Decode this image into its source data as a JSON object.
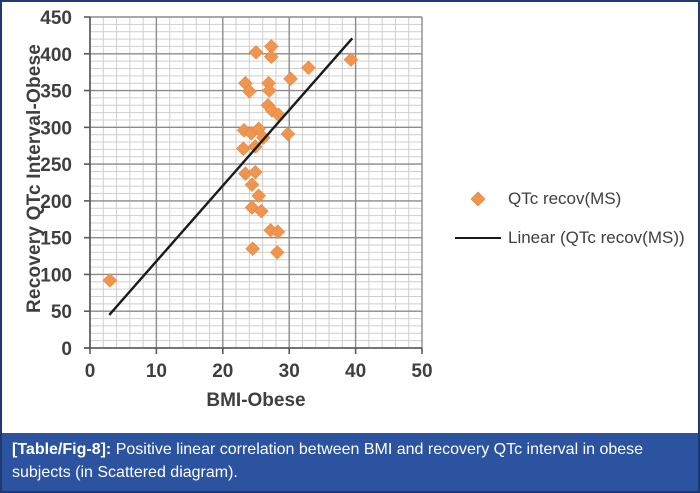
{
  "chart_data": {
    "type": "scatter",
    "xlabel": "BMI-Obese",
    "ylabel": "Recovery QTc Interval-Obese",
    "xlim": [
      0,
      50
    ],
    "ylim": [
      0,
      450
    ],
    "x_ticks": [
      0,
      10,
      20,
      30,
      40,
      50
    ],
    "y_ticks": [
      0,
      50,
      100,
      150,
      200,
      250,
      300,
      350,
      400,
      450
    ],
    "x_minor_step": 2,
    "y_minor_step": 10,
    "grid": true,
    "legend_position": "right-center",
    "series": [
      {
        "name": "QTc recov(MS)",
        "kind": "scatter",
        "marker": "diamond",
        "color": "#F0954E",
        "points": [
          [
            3,
            92
          ],
          [
            23.4,
            360
          ],
          [
            24,
            349
          ],
          [
            26.9,
            360
          ],
          [
            27,
            350
          ],
          [
            25,
            402
          ],
          [
            27.3,
            410
          ],
          [
            27.3,
            396
          ],
          [
            30.2,
            366
          ],
          [
            32.9,
            381
          ],
          [
            39.3,
            392
          ],
          [
            26.8,
            330
          ],
          [
            27.4,
            323
          ],
          [
            28.4,
            317
          ],
          [
            23.2,
            296
          ],
          [
            24.3,
            292
          ],
          [
            25.4,
            298
          ],
          [
            26.1,
            286
          ],
          [
            29.8,
            291
          ],
          [
            23.1,
            271
          ],
          [
            24.9,
            274
          ],
          [
            23.4,
            237
          ],
          [
            24.9,
            239
          ],
          [
            24.4,
            222
          ],
          [
            25.4,
            207
          ],
          [
            24.4,
            191
          ],
          [
            25.8,
            186
          ],
          [
            27.2,
            160
          ],
          [
            28.3,
            158
          ],
          [
            24.5,
            135
          ],
          [
            28.2,
            130
          ]
        ]
      },
      {
        "name": "Linear (QTc recov(MS))",
        "kind": "line",
        "color": "#1a1a1a",
        "points": [
          [
            2.9,
            45
          ],
          [
            39.5,
            421
          ]
        ]
      }
    ],
    "colors": {
      "minor_grid": "#cfcfcf",
      "major_grid": "#8c8c8c",
      "axis": "#595959",
      "tick_text": "#3f3f3f"
    }
  },
  "caption": {
    "tag": "[Table/Fig-8]:",
    "body": " Positive linear correlation between BMI and recovery QTc interval in obese subjects (in Scattered diagram).",
    "background": "#2b53a0",
    "text_color": "#ffffff"
  },
  "frame": {
    "border_color": "#1e3a6e",
    "background": "#ffffff"
  }
}
